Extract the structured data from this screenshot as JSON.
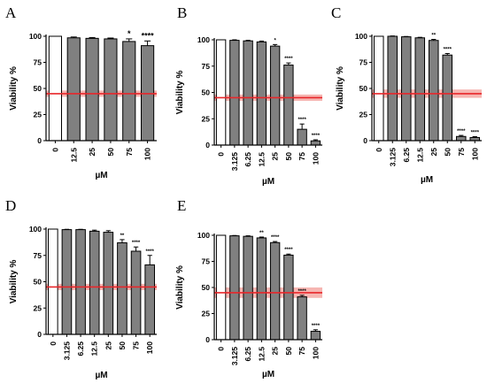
{
  "colors": {
    "control_fill": "#ffffff",
    "treated_fill": "#808080",
    "bar_stroke": "#000000",
    "reference_line": "#e8262a",
    "reference_band": "#f4a9a4"
  },
  "chart_data": [
    {
      "panel": "A",
      "type": "bar",
      "xlabel": "µM",
      "ylabel": "Viability %",
      "ylim": [
        0,
        100
      ],
      "yticks": [
        "0",
        "25",
        "50",
        "75",
        "100"
      ],
      "categories": [
        "0",
        "12.5",
        "25",
        "50",
        "75",
        "100"
      ],
      "values": [
        100,
        98.5,
        98,
        97.5,
        95,
        91
      ],
      "errors": [
        0,
        0.8,
        0.8,
        0.8,
        2.5,
        4.5
      ],
      "significance": [
        "",
        "",
        "",
        "",
        "*",
        "****"
      ],
      "reference": {
        "value": 45,
        "band": [
          42,
          48
        ]
      }
    },
    {
      "panel": "B",
      "type": "bar",
      "xlabel": "µM",
      "ylabel": "Viability %",
      "ylim": [
        0,
        100
      ],
      "yticks": [
        "0",
        "25",
        "50",
        "75",
        "100"
      ],
      "categories": [
        "0",
        "3.125",
        "6.25",
        "12.5",
        "25",
        "50",
        "75",
        "100"
      ],
      "values": [
        100,
        99.5,
        99,
        98,
        94,
        76,
        15,
        4
      ],
      "errors": [
        0,
        0.5,
        0.5,
        0.8,
        1.5,
        2,
        5,
        1
      ],
      "significance": [
        "",
        "",
        "",
        "",
        "*",
        "****",
        "****",
        "****"
      ],
      "reference": {
        "value": 45,
        "band": [
          42,
          48
        ]
      }
    },
    {
      "panel": "C",
      "type": "bar",
      "xlabel": "µM",
      "ylabel": "Viability %",
      "ylim": [
        0,
        100
      ],
      "yticks": [
        "0",
        "25",
        "50",
        "75",
        "100"
      ],
      "categories": [
        "0",
        "3.125",
        "6.25",
        "12.5",
        "25",
        "50",
        "75",
        "100"
      ],
      "values": [
        100,
        100,
        99.5,
        98.5,
        96,
        82,
        4,
        3
      ],
      "errors": [
        0,
        0.3,
        0.3,
        0.5,
        1,
        1.5,
        1,
        0.8
      ],
      "significance": [
        "",
        "",
        "",
        "",
        "**",
        "****",
        "****",
        "****"
      ],
      "reference": {
        "value": 45,
        "band": [
          41,
          49
        ]
      }
    },
    {
      "panel": "D",
      "type": "bar",
      "xlabel": "µM",
      "ylabel": "Viability %",
      "ylim": [
        0,
        100
      ],
      "yticks": [
        "0",
        "25",
        "50",
        "75",
        "100"
      ],
      "categories": [
        "0",
        "3.125",
        "6.25",
        "12.5",
        "25",
        "50",
        "75",
        "100"
      ],
      "values": [
        100,
        99.5,
        99.5,
        98,
        97,
        87,
        79,
        66
      ],
      "errors": [
        0,
        0.3,
        0.3,
        1,
        1.5,
        3,
        4,
        9
      ],
      "significance": [
        "",
        "",
        "",
        "",
        "",
        "**",
        "****",
        "****"
      ],
      "reference": {
        "value": 45,
        "band": [
          42,
          48
        ]
      }
    },
    {
      "panel": "E",
      "type": "bar",
      "xlabel": "µM",
      "ylabel": "Viability %",
      "ylim": [
        0,
        100
      ],
      "yticks": [
        "0",
        "25",
        "50",
        "75",
        "100"
      ],
      "categories": [
        "0",
        "3.125",
        "6.25",
        "12.5",
        "25",
        "50",
        "75",
        "100"
      ],
      "values": [
        100,
        99.5,
        99,
        97.5,
        93,
        81,
        41,
        8
      ],
      "errors": [
        0,
        0.3,
        0.5,
        0.8,
        1,
        1,
        1.5,
        1.5
      ],
      "significance": [
        "",
        "",
        "",
        "**",
        "****",
        "****",
        "****",
        "****"
      ],
      "reference": {
        "value": 45,
        "band": [
          40,
          50
        ]
      }
    }
  ]
}
